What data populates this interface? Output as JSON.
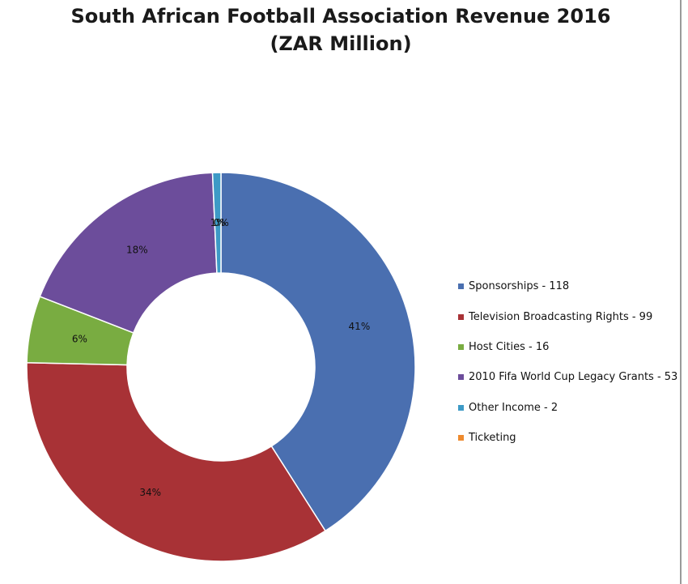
{
  "chart_data": {
    "type": "pie",
    "title": "South African Football Association Revenue 2016",
    "subtitle": "(ZAR Million)",
    "slices": [
      {
        "label": "Sponsorships - 118",
        "value": 118,
        "percent_label": "41%",
        "color": "#4a6fb0"
      },
      {
        "label": "Television Broadcasting Rights - 99",
        "value": 99,
        "percent_label": "34%",
        "color": "#a83236"
      },
      {
        "label": "Host Cities - 16",
        "value": 16,
        "percent_label": "6%",
        "color": "#79ac41"
      },
      {
        "label": "2010 Fifa World Cup Legacy Grants - 53",
        "value": 53,
        "percent_label": "18%",
        "color": "#6c4d9b"
      },
      {
        "label": "Other Income - 2",
        "value": 2,
        "percent_label": "1%",
        "color": "#3d9ac6"
      },
      {
        "label": "Ticketing",
        "value": 0,
        "percent_label": "0%",
        "color": "#ee8a2e"
      }
    ],
    "donut": true,
    "legend_position": "right"
  }
}
